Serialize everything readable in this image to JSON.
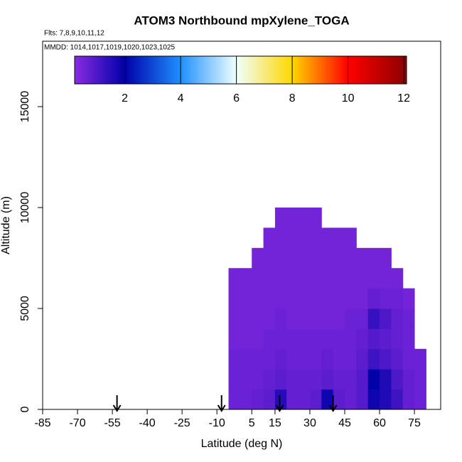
{
  "chart_data": {
    "type": "heatmap",
    "title": "ATOM3 Northbound mpXylene_TOGA",
    "subtitle": "Flts: 7,8,9,10,11,12",
    "annotation": "MMDD: 1014,1017,1019,1020,1023,1025",
    "x_label": "Latitude (deg N)",
    "y_label": "Altitude (m)",
    "xlim": [
      -85,
      86.3
    ],
    "ylim": [
      0,
      18240
    ],
    "xticks": [
      -85,
      -70,
      -55,
      -40,
      -25,
      -10,
      5,
      15,
      30,
      45,
      60,
      75
    ],
    "yticks": [
      0,
      5000,
      10000,
      15000
    ],
    "x_edges": [
      -5,
      0,
      5,
      10,
      15,
      20,
      25,
      30,
      35,
      40,
      45,
      50,
      55,
      60,
      65,
      70,
      75,
      80
    ],
    "y_edges": [
      0,
      1000,
      2000,
      3000,
      4000,
      5000,
      6000,
      7000,
      8000,
      9000,
      10000
    ],
    "z": [
      [
        0.6,
        0.6,
        0.7,
        0.8,
        1.5,
        0.7,
        0.7,
        0.8,
        1.8,
        0.8,
        0.7,
        0.9,
        1.8,
        1.6,
        1.2,
        0.7,
        0.6
      ],
      [
        0.6,
        0.6,
        0.6,
        0.7,
        0.8,
        0.7,
        0.7,
        0.7,
        0.8,
        0.7,
        0.7,
        0.9,
        2.0,
        1.6,
        1.0,
        0.7,
        0.6
      ],
      [
        0.6,
        0.6,
        0.6,
        0.6,
        0.7,
        0.6,
        0.6,
        0.6,
        0.7,
        0.6,
        0.6,
        0.8,
        1.2,
        1.0,
        0.8,
        0.6,
        0.6
      ],
      [
        0.5,
        0.5,
        0.5,
        0.6,
        0.6,
        0.6,
        0.6,
        0.6,
        0.6,
        0.6,
        0.6,
        0.7,
        0.9,
        0.8,
        0.7,
        0.6,
        null
      ],
      [
        0.5,
        0.5,
        0.5,
        0.5,
        0.6,
        0.5,
        0.5,
        0.5,
        0.5,
        0.5,
        0.6,
        0.6,
        1.3,
        1.0,
        0.7,
        0.6,
        null
      ],
      [
        0.5,
        0.5,
        0.5,
        0.5,
        0.5,
        0.5,
        0.5,
        0.5,
        0.5,
        0.5,
        0.5,
        0.5,
        0.7,
        0.6,
        0.6,
        0.5,
        null
      ],
      [
        0.5,
        0.5,
        0.5,
        0.5,
        0.5,
        0.5,
        0.5,
        0.5,
        0.5,
        0.5,
        0.5,
        0.5,
        0.5,
        0.5,
        0.5,
        null,
        null
      ],
      [
        null,
        null,
        0.5,
        0.5,
        0.5,
        0.5,
        0.5,
        0.5,
        0.5,
        0.5,
        0.5,
        0.5,
        0.5,
        0.5,
        null,
        null,
        null
      ],
      [
        null,
        null,
        null,
        0.5,
        0.5,
        0.5,
        0.5,
        0.5,
        0.5,
        0.5,
        0.5,
        null,
        null,
        null,
        null,
        null,
        null
      ],
      [
        null,
        null,
        null,
        null,
        0.5,
        0.5,
        0.5,
        0.5,
        null,
        null,
        null,
        null,
        null,
        null,
        null,
        null,
        null
      ]
    ],
    "colorbar": {
      "lim": [
        0.2,
        12.1
      ],
      "ticks": [
        2,
        4,
        6,
        8,
        10,
        12
      ],
      "stops": [
        0.2,
        2,
        4,
        6,
        8,
        10,
        12.1
      ],
      "colors": [
        "#8a2be2",
        "#0000a8",
        "#1e90ff",
        "#f0ffff",
        "#ffd700",
        "#ff0000",
        "#8b0000"
      ]
    },
    "arrows": [
      -53,
      -8,
      17,
      40
    ]
  }
}
